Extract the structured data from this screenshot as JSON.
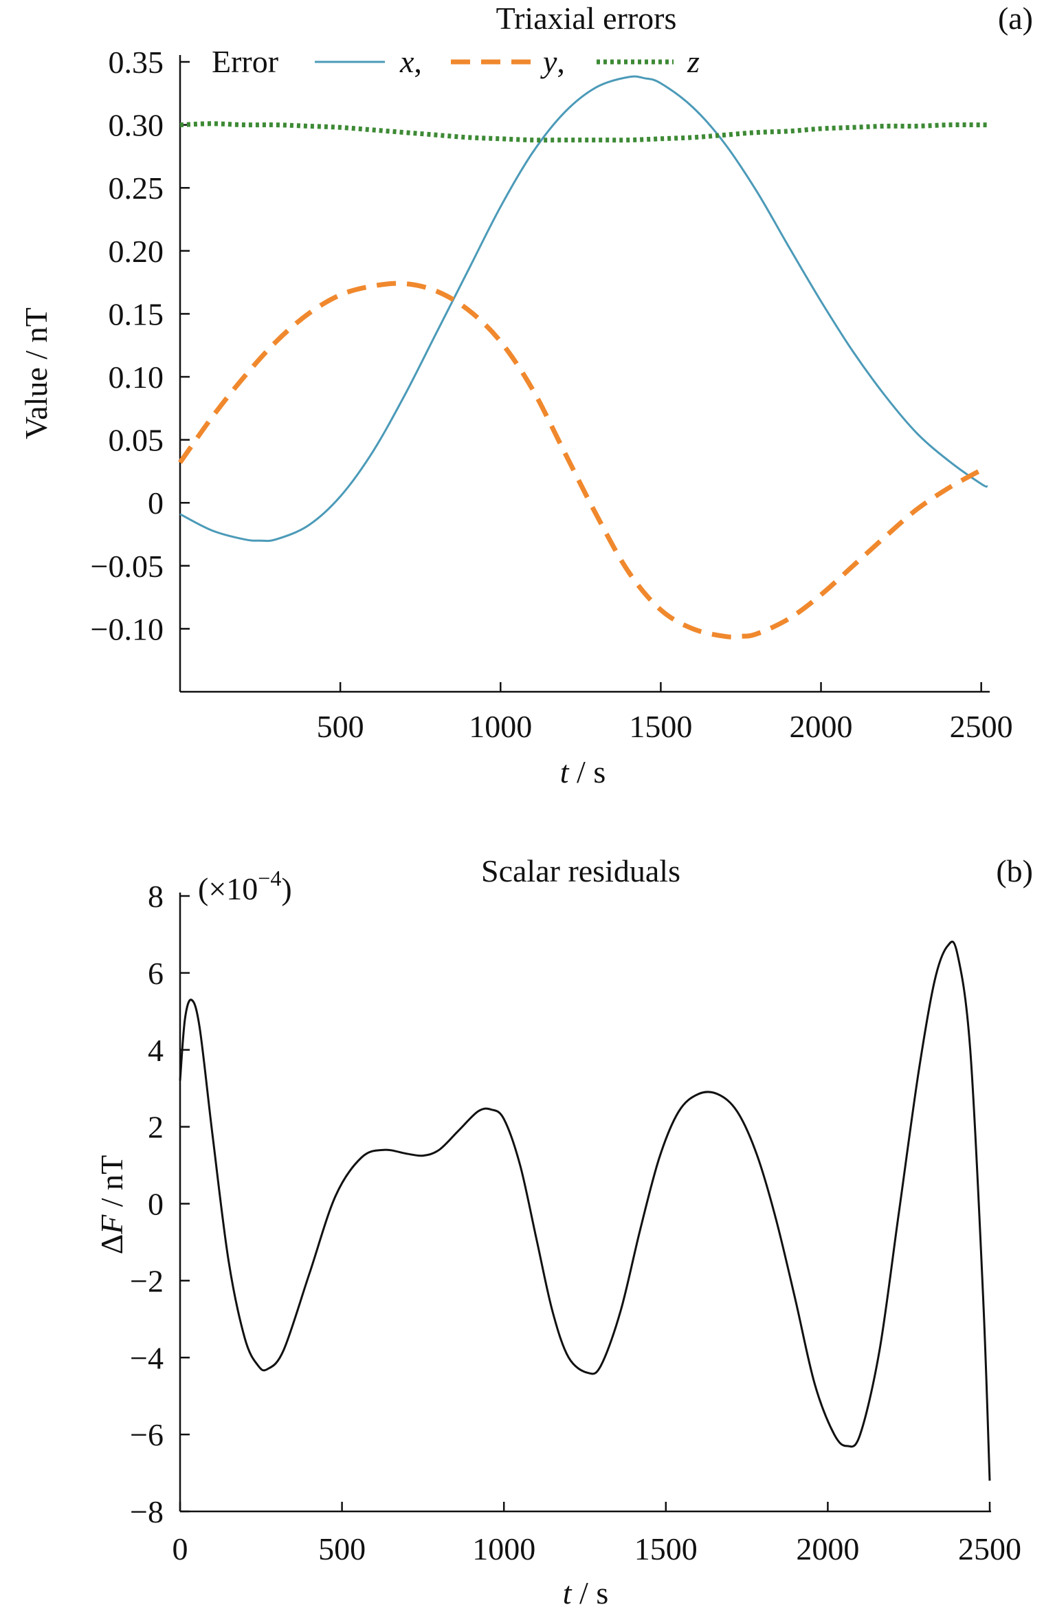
{
  "chart_data": [
    {
      "type": "line",
      "title": "Triaxial errors",
      "panel_label": "(a)",
      "ylabel": "Value / nT",
      "xlabel_var": "t",
      "xlabel_unit": " / s",
      "xlim": [
        0,
        2520
      ],
      "ylim": [
        -0.15,
        0.35
      ],
      "xticks": [
        500,
        1000,
        1500,
        2000,
        2500
      ],
      "xtick_labels": [
        "500",
        "1000",
        "1500",
        "2000",
        "2500"
      ],
      "yticks": [
        0.35,
        0.3,
        0.25,
        0.2,
        0.15,
        0.1,
        0.05,
        0,
        -0.05,
        -0.1
      ],
      "ytick_labels": [
        "0.35",
        "0.30",
        "0.25",
        "0.20",
        "0.15",
        "0.10",
        "0.05",
        "0",
        "−0.05",
        "−0.10"
      ],
      "grid": false,
      "legend": {
        "placement": "top-left",
        "title": "Error",
        "separator": ","
      },
      "series": [
        {
          "name": "x",
          "color": "#4b9ab8",
          "style": "solid",
          "points": [
            [
              0,
              -0.009
            ],
            [
              100,
              -0.022
            ],
            [
              200,
              -0.029
            ],
            [
              250,
              -0.03
            ],
            [
              300,
              -0.029
            ],
            [
              400,
              -0.018
            ],
            [
              500,
              0.005
            ],
            [
              600,
              0.04
            ],
            [
              700,
              0.085
            ],
            [
              800,
              0.135
            ],
            [
              900,
              0.185
            ],
            [
              1000,
              0.235
            ],
            [
              1100,
              0.278
            ],
            [
              1200,
              0.31
            ],
            [
              1300,
              0.33
            ],
            [
              1400,
              0.338
            ],
            [
              1450,
              0.337
            ],
            [
              1500,
              0.333
            ],
            [
              1600,
              0.314
            ],
            [
              1700,
              0.285
            ],
            [
              1800,
              0.247
            ],
            [
              1900,
              0.203
            ],
            [
              2000,
              0.16
            ],
            [
              2100,
              0.12
            ],
            [
              2200,
              0.085
            ],
            [
              2300,
              0.055
            ],
            [
              2400,
              0.033
            ],
            [
              2500,
              0.015
            ],
            [
              2520,
              0.013
            ]
          ]
        },
        {
          "name": "y",
          "color": "#f0882d",
          "style": "dashed",
          "points": [
            [
              0,
              0.032
            ],
            [
              100,
              0.068
            ],
            [
              200,
              0.1
            ],
            [
              300,
              0.128
            ],
            [
              400,
              0.15
            ],
            [
              500,
              0.165
            ],
            [
              600,
              0.172
            ],
            [
              700,
              0.174
            ],
            [
              800,
              0.168
            ],
            [
              900,
              0.153
            ],
            [
              1000,
              0.128
            ],
            [
              1100,
              0.09
            ],
            [
              1200,
              0.04
            ],
            [
              1300,
              -0.01
            ],
            [
              1400,
              -0.055
            ],
            [
              1500,
              -0.085
            ],
            [
              1600,
              -0.1
            ],
            [
              1700,
              -0.106
            ],
            [
              1750,
              -0.106
            ],
            [
              1800,
              -0.104
            ],
            [
              1900,
              -0.092
            ],
            [
              2000,
              -0.073
            ],
            [
              2100,
              -0.05
            ],
            [
              2200,
              -0.027
            ],
            [
              2300,
              -0.005
            ],
            [
              2400,
              0.012
            ],
            [
              2500,
              0.026
            ],
            [
              2520,
              0.028
            ]
          ]
        },
        {
          "name": "z",
          "color": "#3d8a35",
          "style": "dotted",
          "points": [
            [
              0,
              0.3
            ],
            [
              100,
              0.301
            ],
            [
              200,
              0.3
            ],
            [
              300,
              0.3
            ],
            [
              400,
              0.299
            ],
            [
              500,
              0.298
            ],
            [
              600,
              0.296
            ],
            [
              700,
              0.294
            ],
            [
              800,
              0.292
            ],
            [
              900,
              0.29
            ],
            [
              1000,
              0.289
            ],
            [
              1100,
              0.288
            ],
            [
              1200,
              0.288
            ],
            [
              1300,
              0.288
            ],
            [
              1400,
              0.288
            ],
            [
              1500,
              0.289
            ],
            [
              1600,
              0.29
            ],
            [
              1700,
              0.292
            ],
            [
              1800,
              0.294
            ],
            [
              1900,
              0.295
            ],
            [
              2000,
              0.297
            ],
            [
              2100,
              0.298
            ],
            [
              2200,
              0.299
            ],
            [
              2300,
              0.299
            ],
            [
              2400,
              0.3
            ],
            [
              2500,
              0.3
            ],
            [
              2520,
              0.3
            ]
          ]
        }
      ]
    },
    {
      "type": "line",
      "title": "Scalar residuals",
      "panel_label": "(b)",
      "multiplier_label": "(×10",
      "multiplier_exp": "−4",
      "multiplier_close": ")",
      "ylabel_prefix": "Δ",
      "ylabel_var": "F",
      "ylabel_unit": " / nT",
      "xlabel_var": "t",
      "xlabel_unit": " / s",
      "xlim": [
        0,
        2500
      ],
      "ylim": [
        -8,
        8
      ],
      "xticks": [
        0,
        500,
        1000,
        1500,
        2000,
        2500
      ],
      "xtick_labels": [
        "0",
        "500",
        "1000",
        "1500",
        "2000",
        "2500"
      ],
      "yticks": [
        8,
        6,
        4,
        2,
        0,
        -2,
        -4,
        -6,
        -8
      ],
      "ytick_labels": [
        "8",
        "6",
        "4",
        "2",
        "0",
        "−2",
        "−4",
        "−6",
        "−8"
      ],
      "grid": false,
      "series": [
        {
          "color": "#111111",
          "style": "solid",
          "points": [
            [
              0,
              3.2
            ],
            [
              15,
              4.8
            ],
            [
              35,
              5.3
            ],
            [
              60,
              4.6
            ],
            [
              100,
              1.8
            ],
            [
              150,
              -1.5
            ],
            [
              200,
              -3.5
            ],
            [
              240,
              -4.2
            ],
            [
              270,
              -4.3
            ],
            [
              320,
              -3.8
            ],
            [
              400,
              -1.8
            ],
            [
              480,
              0.2
            ],
            [
              560,
              1.2
            ],
            [
              630,
              1.4
            ],
            [
              700,
              1.3
            ],
            [
              750,
              1.25
            ],
            [
              800,
              1.4
            ],
            [
              860,
              1.9
            ],
            [
              920,
              2.4
            ],
            [
              960,
              2.45
            ],
            [
              1000,
              2.2
            ],
            [
              1050,
              1.0
            ],
            [
              1100,
              -0.9
            ],
            [
              1150,
              -2.8
            ],
            [
              1200,
              -4.0
            ],
            [
              1260,
              -4.4
            ],
            [
              1300,
              -4.2
            ],
            [
              1360,
              -2.8
            ],
            [
              1420,
              -0.7
            ],
            [
              1480,
              1.2
            ],
            [
              1540,
              2.4
            ],
            [
              1600,
              2.85
            ],
            [
              1660,
              2.85
            ],
            [
              1720,
              2.4
            ],
            [
              1780,
              1.3
            ],
            [
              1840,
              -0.4
            ],
            [
              1900,
              -2.5
            ],
            [
              1960,
              -4.7
            ],
            [
              2020,
              -6.0
            ],
            [
              2060,
              -6.3
            ],
            [
              2100,
              -6.0
            ],
            [
              2160,
              -3.8
            ],
            [
              2220,
              -0.2
            ],
            [
              2280,
              3.4
            ],
            [
              2330,
              5.8
            ],
            [
              2370,
              6.7
            ],
            [
              2400,
              6.5
            ],
            [
              2440,
              4.0
            ],
            [
              2480,
              -2.5
            ],
            [
              2500,
              -7.2
            ]
          ]
        }
      ]
    }
  ]
}
